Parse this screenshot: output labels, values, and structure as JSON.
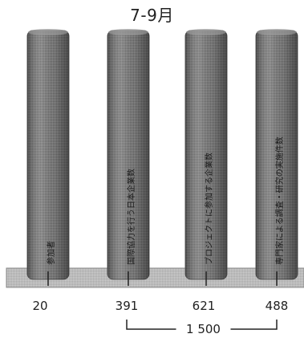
{
  "chart_data": {
    "type": "bar",
    "title": "7-9月",
    "categories": [
      "参加者",
      "国際協力を行う日本企業数",
      "プロジェクトに参加する企業数",
      "専門家による調査・研究の実施件数"
    ],
    "values": [
      20,
      391,
      621,
      488
    ],
    "value_labels": [
      "20",
      "391",
      "621",
      "488"
    ],
    "group_total": {
      "label": "1 500",
      "value": 1500,
      "from_index": 1,
      "to_index": 3
    },
    "ylim": [
      0,
      621
    ],
    "xlabel": "",
    "ylabel": "",
    "grid": false,
    "legend": "none",
    "colors": {
      "bar": "#7a7a7a",
      "bar_dark": "#5a5a5a",
      "bar_light": "#9a9a9a",
      "base": "#b8b8b8",
      "base_edge": "#8a8a8a",
      "text": "#222222"
    }
  }
}
